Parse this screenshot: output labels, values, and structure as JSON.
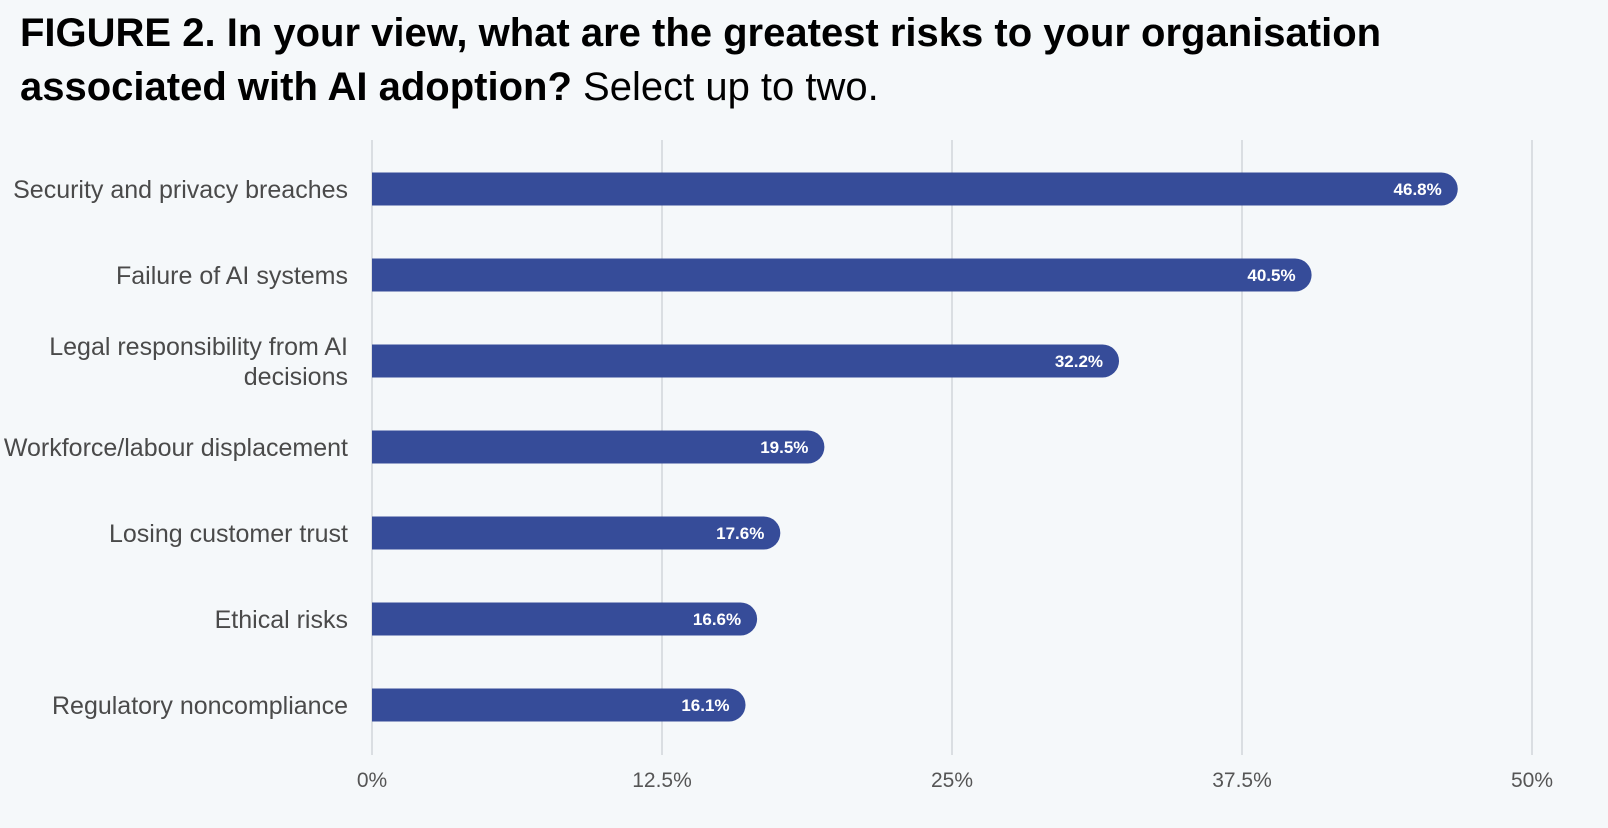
{
  "title": {
    "bold": "FIGURE 2. In your view, what are the greatest risks to your organisation associated with AI adoption?",
    "light": "Select up to two."
  },
  "colors": {
    "bar": "#364c99",
    "grid": "#c9cdd2",
    "background": "#f5f8fa"
  },
  "chart_data": {
    "type": "bar",
    "orientation": "horizontal",
    "title": "FIGURE 2. In your view, what are the greatest risks to your organisation associated with AI adoption? Select up to two.",
    "categories": [
      [
        "Security and privacy breaches"
      ],
      [
        "Failure of AI systems"
      ],
      [
        "Legal responsibility from AI",
        "decisions"
      ],
      [
        "Workforce/labour displacement"
      ],
      [
        "Losing customer trust"
      ],
      [
        "Ethical risks"
      ],
      [
        "Regulatory noncompliance"
      ]
    ],
    "values": [
      46.8,
      40.5,
      32.2,
      19.5,
      17.6,
      16.6,
      16.1
    ],
    "value_labels": [
      "46.8%",
      "40.5%",
      "32.2%",
      "19.5%",
      "17.6%",
      "16.6%",
      "16.1%"
    ],
    "xlim": [
      0,
      50
    ],
    "ticks": [
      0,
      12.5,
      25,
      37.5,
      50
    ],
    "tick_labels": [
      "0%",
      "12.5%",
      "25%",
      "37.5%",
      "50%"
    ],
    "grid": true,
    "legend": "none"
  }
}
